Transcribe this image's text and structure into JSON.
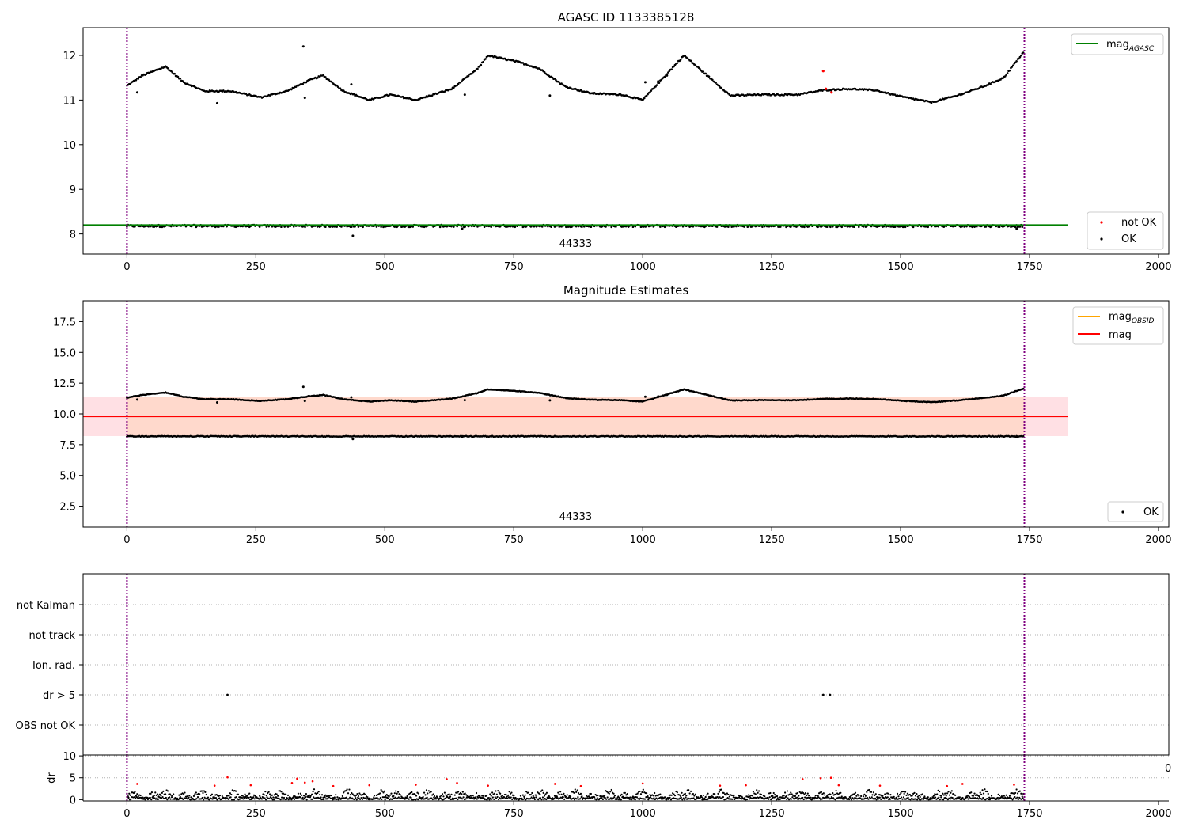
{
  "chart_data": [
    {
      "type": "scatter",
      "title": "AGASC ID 1133385128",
      "xlim": [
        -85,
        2020
      ],
      "ylim": [
        7.55,
        12.62
      ],
      "xticks": [
        "0",
        "250",
        "500",
        "750",
        "1000",
        "1250",
        "1500",
        "1750",
        "2000"
      ],
      "xtick_values": [
        0,
        250,
        500,
        750,
        1000,
        1250,
        1500,
        1750,
        2000
      ],
      "yticks": [
        "8",
        "9",
        "10",
        "11",
        "12"
      ],
      "ytick_values": [
        8,
        9,
        10,
        11,
        12
      ],
      "obsid_label": "44333",
      "obsid_label_x": 870,
      "obsid_bounds": [
        0,
        1740
      ],
      "mag_agasc": 8.2,
      "mag_agasc_x": [
        -85,
        1825
      ],
      "upper_band_knots": [
        [
          0,
          11.32
        ],
        [
          30,
          11.55
        ],
        [
          75,
          11.75
        ],
        [
          110,
          11.4
        ],
        [
          150,
          11.2
        ],
        [
          200,
          11.2
        ],
        [
          260,
          11.06
        ],
        [
          310,
          11.2
        ],
        [
          355,
          11.45
        ],
        [
          380,
          11.55
        ],
        [
          420,
          11.2
        ],
        [
          470,
          11.0
        ],
        [
          510,
          11.12
        ],
        [
          560,
          11.0
        ],
        [
          630,
          11.25
        ],
        [
          680,
          11.7
        ],
        [
          700,
          12.0
        ],
        [
          760,
          11.85
        ],
        [
          800,
          11.7
        ],
        [
          850,
          11.3
        ],
        [
          900,
          11.15
        ],
        [
          960,
          11.12
        ],
        [
          1000,
          11.0
        ],
        [
          1040,
          11.5
        ],
        [
          1080,
          12.0
        ],
        [
          1120,
          11.6
        ],
        [
          1170,
          11.1
        ],
        [
          1230,
          11.12
        ],
        [
          1300,
          11.12
        ],
        [
          1350,
          11.22
        ],
        [
          1400,
          11.25
        ],
        [
          1450,
          11.22
        ],
        [
          1500,
          11.08
        ],
        [
          1560,
          10.95
        ],
        [
          1610,
          11.1
        ],
        [
          1660,
          11.3
        ],
        [
          1700,
          11.5
        ],
        [
          1740,
          12.1
        ]
      ],
      "upper_outliers": [
        [
          342,
          12.2
        ],
        [
          1047,
          11.55
        ],
        [
          345,
          11.05
        ],
        [
          1005,
          11.4
        ],
        [
          20,
          11.17
        ],
        [
          175,
          10.93
        ],
        [
          820,
          11.1
        ],
        [
          435,
          11.35
        ],
        [
          1030,
          11.42
        ],
        [
          655,
          11.12
        ]
      ],
      "lower_band_mean": 8.18,
      "lower_outliers": [
        [
          438,
          7.96
        ],
        [
          650,
          8.12
        ],
        [
          1725,
          8.12
        ]
      ],
      "not_ok_points": [
        [
          1350,
          11.65
        ],
        [
          1366,
          11.17
        ],
        [
          1355,
          11.25
        ]
      ],
      "legend_top": [
        "mag_AGASC"
      ],
      "legend_bottom": [
        "not OK",
        "OK"
      ],
      "colors": {
        "mag_agasc": "#008000",
        "ok": "#000000",
        "not_ok": "#ff0000",
        "obsid_line": "#800080"
      }
    },
    {
      "type": "scatter",
      "title": "Magnitude Estimates",
      "xlim": [
        -85,
        2020
      ],
      "ylim": [
        0.8,
        19.2
      ],
      "xticks": [
        "0",
        "250",
        "500",
        "750",
        "1000",
        "1250",
        "1500",
        "1750",
        "2000"
      ],
      "xtick_values": [
        0,
        250,
        500,
        750,
        1000,
        1250,
        1500,
        1750,
        2000
      ],
      "yticks": [
        "2.5",
        "5.0",
        "7.5",
        "10.0",
        "12.5",
        "15.0",
        "17.5"
      ],
      "ytick_values": [
        2.5,
        5.0,
        7.5,
        10.0,
        12.5,
        15.0,
        17.5
      ],
      "obsid_label": "44333",
      "obsid_label_x": 870,
      "mag_line": 9.8,
      "mag_line_x": [
        -85,
        1825
      ],
      "mag_band": [
        8.2,
        11.4
      ],
      "mag_obsid_band": [
        8.2,
        11.4
      ],
      "mag_obsid_band_x": [
        0,
        1740
      ],
      "legend_top": [
        "mag_OBSID",
        "mag"
      ],
      "legend_bottom": [
        "OK"
      ],
      "colors": {
        "mag": "#ff0000",
        "mag_obsid": "#ffa500",
        "band_outer": "#ffe0e4",
        "band_inner": "#ffd9cc"
      }
    },
    {
      "type": "scatter",
      "title": "",
      "xlim": [
        -85,
        2020
      ],
      "categories": [
        "OBS not OK",
        "dr > 5",
        "Ion. rad.",
        "not track",
        "not Kalman"
      ],
      "flag_points": [
        {
          "category": "dr > 5",
          "x": 195
        },
        {
          "category": "dr > 5",
          "x": 1350
        },
        {
          "category": "dr > 5",
          "x": 1363
        }
      ]
    },
    {
      "type": "scatter",
      "title": "",
      "xlim": [
        -85,
        2020
      ],
      "ylim": [
        -0.3,
        10.2
      ],
      "ylabel": "dr",
      "yticks": [
        "0",
        "5",
        "10"
      ],
      "ytick_values": [
        0,
        5,
        10
      ],
      "xticks": [
        "0",
        "250",
        "500",
        "750",
        "1000",
        "1250",
        "1500",
        "1750",
        "2000"
      ],
      "xtick_values": [
        0,
        250,
        500,
        750,
        1000,
        1250,
        1500,
        1750,
        2000
      ],
      "dr_high_points": [
        [
          20,
          3.6
        ],
        [
          170,
          3.2
        ],
        [
          195,
          5.1
        ],
        [
          240,
          3.3
        ],
        [
          320,
          3.8
        ],
        [
          330,
          4.8
        ],
        [
          345,
          3.9
        ],
        [
          360,
          4.2
        ],
        [
          400,
          3.1
        ],
        [
          470,
          3.3
        ],
        [
          560,
          3.4
        ],
        [
          620,
          4.7
        ],
        [
          640,
          3.8
        ],
        [
          700,
          3.2
        ],
        [
          830,
          3.6
        ],
        [
          880,
          3.1
        ],
        [
          1000,
          3.7
        ],
        [
          1150,
          3.2
        ],
        [
          1200,
          3.3
        ],
        [
          1310,
          4.7
        ],
        [
          1345,
          4.9
        ],
        [
          1365,
          5.0
        ],
        [
          1380,
          3.3
        ],
        [
          1460,
          3.2
        ],
        [
          1590,
          3.1
        ],
        [
          1620,
          3.6
        ],
        [
          1720,
          3.4
        ]
      ],
      "clipped_label": "0",
      "colors": {
        "ok": "#000000",
        "high": "#ff0000"
      }
    }
  ]
}
